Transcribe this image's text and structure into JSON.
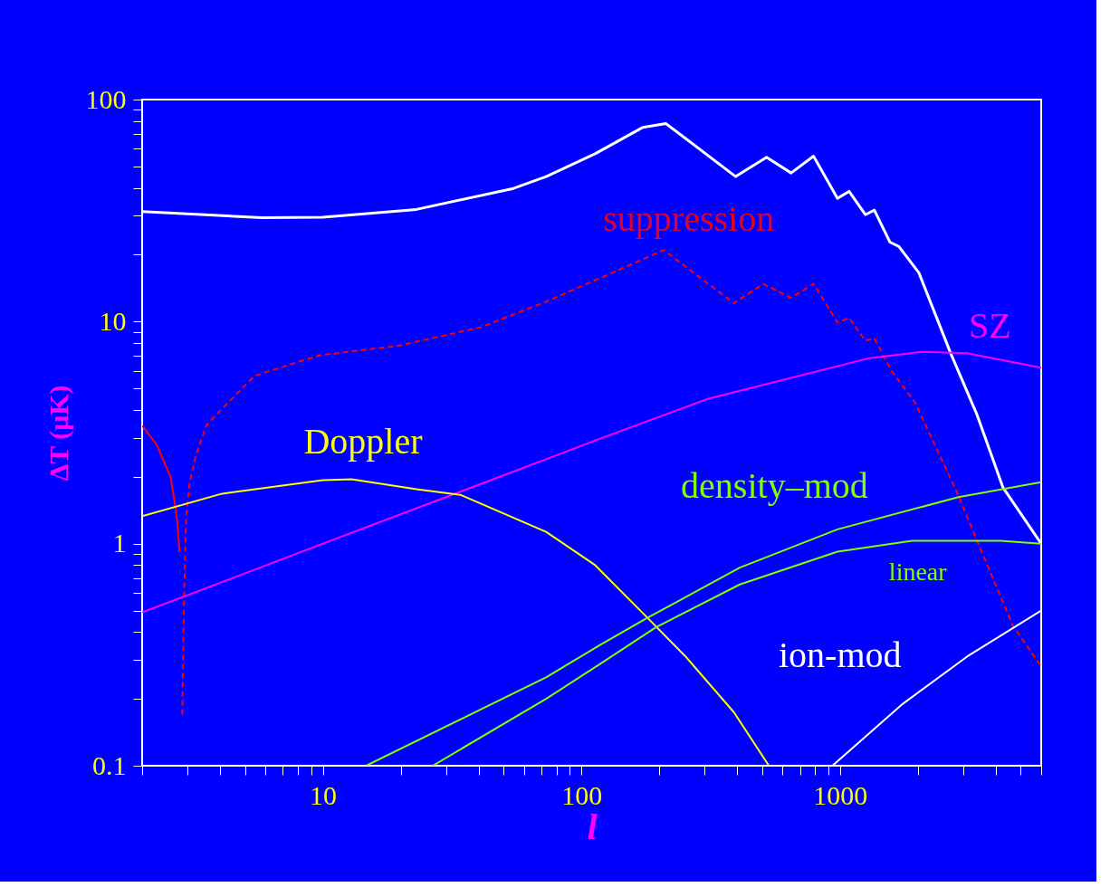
{
  "chart_data": {
    "type": "line",
    "xlabel": "l",
    "ylabel": "ΔT (μK)",
    "log": "xy",
    "grid": false,
    "marker": "none",
    "xlim": [
      2,
      6000
    ],
    "ylim": [
      0.1,
      100
    ],
    "xticks": [
      {
        "value": 2,
        "label": null
      },
      {
        "value": 3,
        "label": null
      },
      {
        "value": 4,
        "label": null
      },
      {
        "value": 5,
        "label": null
      },
      {
        "value": 6,
        "label": null
      },
      {
        "value": 7,
        "label": null
      },
      {
        "value": 8,
        "label": null
      },
      {
        "value": 9,
        "label": null
      },
      10,
      {
        "value": 20,
        "label": null
      },
      {
        "value": 30,
        "label": null
      },
      {
        "value": 40,
        "label": null
      },
      {
        "value": 50,
        "label": null
      },
      {
        "value": 60,
        "label": null
      },
      {
        "value": 70,
        "label": null
      },
      {
        "value": 80,
        "label": null
      },
      {
        "value": 90,
        "label": null
      },
      100,
      {
        "value": 200,
        "label": null
      },
      {
        "value": 300,
        "label": null
      },
      {
        "value": 400,
        "label": null
      },
      {
        "value": 500,
        "label": null
      },
      {
        "value": 600,
        "label": null
      },
      {
        "value": 700,
        "label": null
      },
      {
        "value": 800,
        "label": null
      },
      {
        "value": 900,
        "label": null
      },
      1000,
      {
        "value": 2000,
        "label": null
      },
      {
        "value": 3000,
        "label": null
      },
      {
        "value": 4000,
        "label": null
      },
      {
        "value": 5000,
        "label": null
      },
      {
        "value": 6000,
        "label": null
      }
    ],
    "yticks": [
      0.1,
      {
        "value": 0.2,
        "label": null
      },
      {
        "value": 0.3,
        "label": null
      },
      {
        "value": 0.4,
        "label": null
      },
      {
        "value": 0.5,
        "label": null
      },
      {
        "value": 0.6,
        "label": null
      },
      {
        "value": 0.7,
        "label": null
      },
      {
        "value": 0.8,
        "label": null
      },
      {
        "value": 0.9,
        "label": null
      },
      1,
      {
        "value": 2,
        "label": null
      },
      {
        "value": 3,
        "label": null
      },
      {
        "value": 4,
        "label": null
      },
      {
        "value": 5,
        "label": null
      },
      {
        "value": 6,
        "label": null
      },
      {
        "value": 7,
        "label": null
      },
      {
        "value": 8,
        "label": null
      },
      {
        "value": 9,
        "label": null
      },
      10,
      {
        "value": 20,
        "label": null
      },
      {
        "value": 30,
        "label": null
      },
      {
        "value": 40,
        "label": null
      },
      {
        "value": 50,
        "label": null
      },
      {
        "value": 60,
        "label": null
      },
      {
        "value": 70,
        "label": null
      },
      {
        "value": 80,
        "label": null
      },
      {
        "value": 90,
        "label": null
      },
      100
    ],
    "series": [
      {
        "color": "#ffffff",
        "line_style": "solid",
        "x": [
          2,
          5.8,
          10,
          23,
          54.6,
          73,
          113,
          173,
          212,
          395,
          520,
          647,
          790,
          978,
          1084,
          1254,
          1358,
          1560,
          1690,
          2019,
          2680,
          3390,
          4270,
          6000
        ],
        "values": [
          31.3,
          29.4,
          29.5,
          32,
          39.8,
          45,
          57,
          75,
          78,
          45,
          55,
          46.7,
          55.6,
          35.9,
          38.6,
          30.3,
          31.8,
          22.8,
          21.8,
          16.6,
          7.2,
          3.8,
          1.79,
          1.0
        ]
      },
      {
        "color": "#ff0000",
        "line_style": "solid",
        "x": [
          2,
          2.28,
          2.58,
          2.72,
          2.79
        ],
        "values": [
          3.4,
          2.78,
          1.99,
          1.33,
          0.92
        ]
      },
      {
        "name": "suppression",
        "color": "#ff0000",
        "line_style": "dashed",
        "x": [
          2.86,
          2.9,
          2.96,
          3.05,
          3.23,
          3.54,
          4.08,
          5.45,
          9.7,
          19.8,
          41,
          73,
          115,
          208,
          389,
          505,
          647,
          790,
          978,
          1084,
          1254,
          1358,
          1590,
          1950,
          2870,
          3390,
          4650,
          6000
        ],
        "values": [
          0.17,
          0.52,
          1.33,
          1.86,
          2.51,
          3.4,
          4.06,
          5.7,
          7.05,
          7.8,
          9.45,
          12.3,
          15.5,
          21,
          12.1,
          14.8,
          12.8,
          14.8,
          9.9,
          10.4,
          8.2,
          8.4,
          5.95,
          4.33,
          1.65,
          1.03,
          0.43,
          0.28
        ]
      },
      {
        "name": "SZ",
        "color": "#ff00ff",
        "line_style": "solid",
        "x": [
          2,
          10,
          73,
          118,
          310,
          1300,
          2070,
          3100,
          6000
        ],
        "values": [
          0.49,
          1.0,
          2.4,
          2.97,
          4.5,
          6.85,
          7.3,
          7.2,
          6.2
        ]
      },
      {
        "name": "Doppler",
        "color": "#ffff00",
        "line_style": "solid",
        "x": [
          2,
          4.08,
          10,
          12.9,
          23,
          34,
          73,
          113,
          178,
          253,
          389,
          531
        ],
        "values": [
          1.33,
          1.68,
          1.93,
          1.95,
          1.76,
          1.66,
          1.13,
          0.8,
          0.47,
          0.31,
          0.174,
          0.1
        ]
      },
      {
        "name": "density–mod",
        "color": "#80ff00",
        "line_style": "solid",
        "x": [
          14.7,
          73,
          118,
          178,
          410,
          978,
          2870,
          6000
        ],
        "values": [
          0.1,
          0.25,
          0.35,
          0.46,
          0.78,
          1.16,
          1.62,
          1.89
        ]
      },
      {
        "name": "linear",
        "color": "#80ff00",
        "line_style": "solid",
        "x": [
          26.6,
          73,
          118,
          194,
          410,
          978,
          1900,
          4170,
          6000
        ],
        "values": [
          0.1,
          0.2,
          0.287,
          0.42,
          0.655,
          0.92,
          1.03,
          1.03,
          1.0
        ]
      },
      {
        "name": "ion-mod",
        "color": "#ffffff",
        "line_style": "solid",
        "x": [
          935,
          1750,
          3100,
          6000
        ],
        "values": [
          0.1,
          0.19,
          0.31,
          0.5
        ]
      }
    ]
  }
}
